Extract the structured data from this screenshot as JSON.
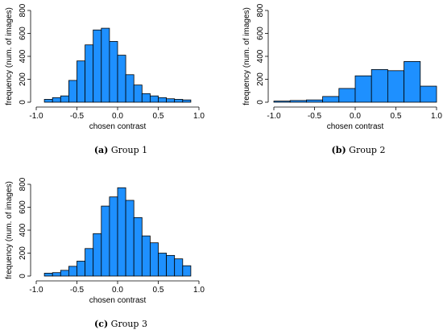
{
  "bar_color": "#1E90FF",
  "chart_data": [
    {
      "type": "bar",
      "subtype": "histogram",
      "caption_label": "(a)",
      "caption_text": " Group 1",
      "xlabel": "chosen contrast",
      "ylabel": "frequency (num. of images)",
      "xlim": [
        -1.0,
        1.0
      ],
      "ylim": [
        0,
        800
      ],
      "xticks": [
        "-1.0",
        "-0.5",
        "0.0",
        "0.5",
        "1.0"
      ],
      "yticks": [
        "0",
        "200",
        "400",
        "600",
        "800"
      ],
      "bin_width": 0.1,
      "bins_start": [
        -0.9,
        -0.8,
        -0.7,
        -0.6,
        -0.5,
        -0.4,
        -0.3,
        -0.2,
        -0.1,
        0.0,
        0.1,
        0.2,
        0.3,
        0.4,
        0.5,
        0.6,
        0.7,
        0.8
      ],
      "values": [
        25,
        40,
        55,
        190,
        360,
        500,
        630,
        645,
        530,
        410,
        240,
        150,
        75,
        55,
        40,
        30,
        25,
        20
      ]
    },
    {
      "type": "bar",
      "subtype": "histogram",
      "caption_label": "(b)",
      "caption_text": " Group 2",
      "xlabel": "chosen contrast",
      "ylabel": "frequency (num. of images)",
      "xlim": [
        -1.0,
        1.0
      ],
      "ylim": [
        0,
        800
      ],
      "xticks": [
        "-1.0",
        "-0.5",
        "0.0",
        "0.5",
        "1.0"
      ],
      "yticks": [
        "0",
        "200",
        "400",
        "600",
        "800"
      ],
      "bin_width": 0.2,
      "bins_start": [
        -1.0,
        -0.8,
        -0.6,
        -0.4,
        -0.2,
        0.0,
        0.2,
        0.4,
        0.6,
        0.8
      ],
      "values": [
        10,
        15,
        20,
        50,
        120,
        230,
        285,
        275,
        355,
        140
      ]
    },
    {
      "type": "bar",
      "subtype": "histogram",
      "caption_label": "(c)",
      "caption_text": " Group 3",
      "xlabel": "chosen contrast",
      "ylabel": "frequency (num. of images)",
      "xlim": [
        -1.0,
        1.0
      ],
      "ylim": [
        0,
        800
      ],
      "xticks": [
        "-1.0",
        "-0.5",
        "0.0",
        "0.5",
        "1.0"
      ],
      "yticks": [
        "0",
        "200",
        "400",
        "600",
        "800"
      ],
      "bin_width": 0.1,
      "bins_start": [
        -0.9,
        -0.8,
        -0.7,
        -0.6,
        -0.5,
        -0.4,
        -0.3,
        -0.2,
        -0.1,
        0.0,
        0.1,
        0.2,
        0.3,
        0.4,
        0.5,
        0.6,
        0.7,
        0.8
      ],
      "values": [
        25,
        30,
        50,
        85,
        130,
        240,
        370,
        610,
        690,
        770,
        660,
        510,
        350,
        290,
        200,
        180,
        150,
        90
      ]
    }
  ]
}
